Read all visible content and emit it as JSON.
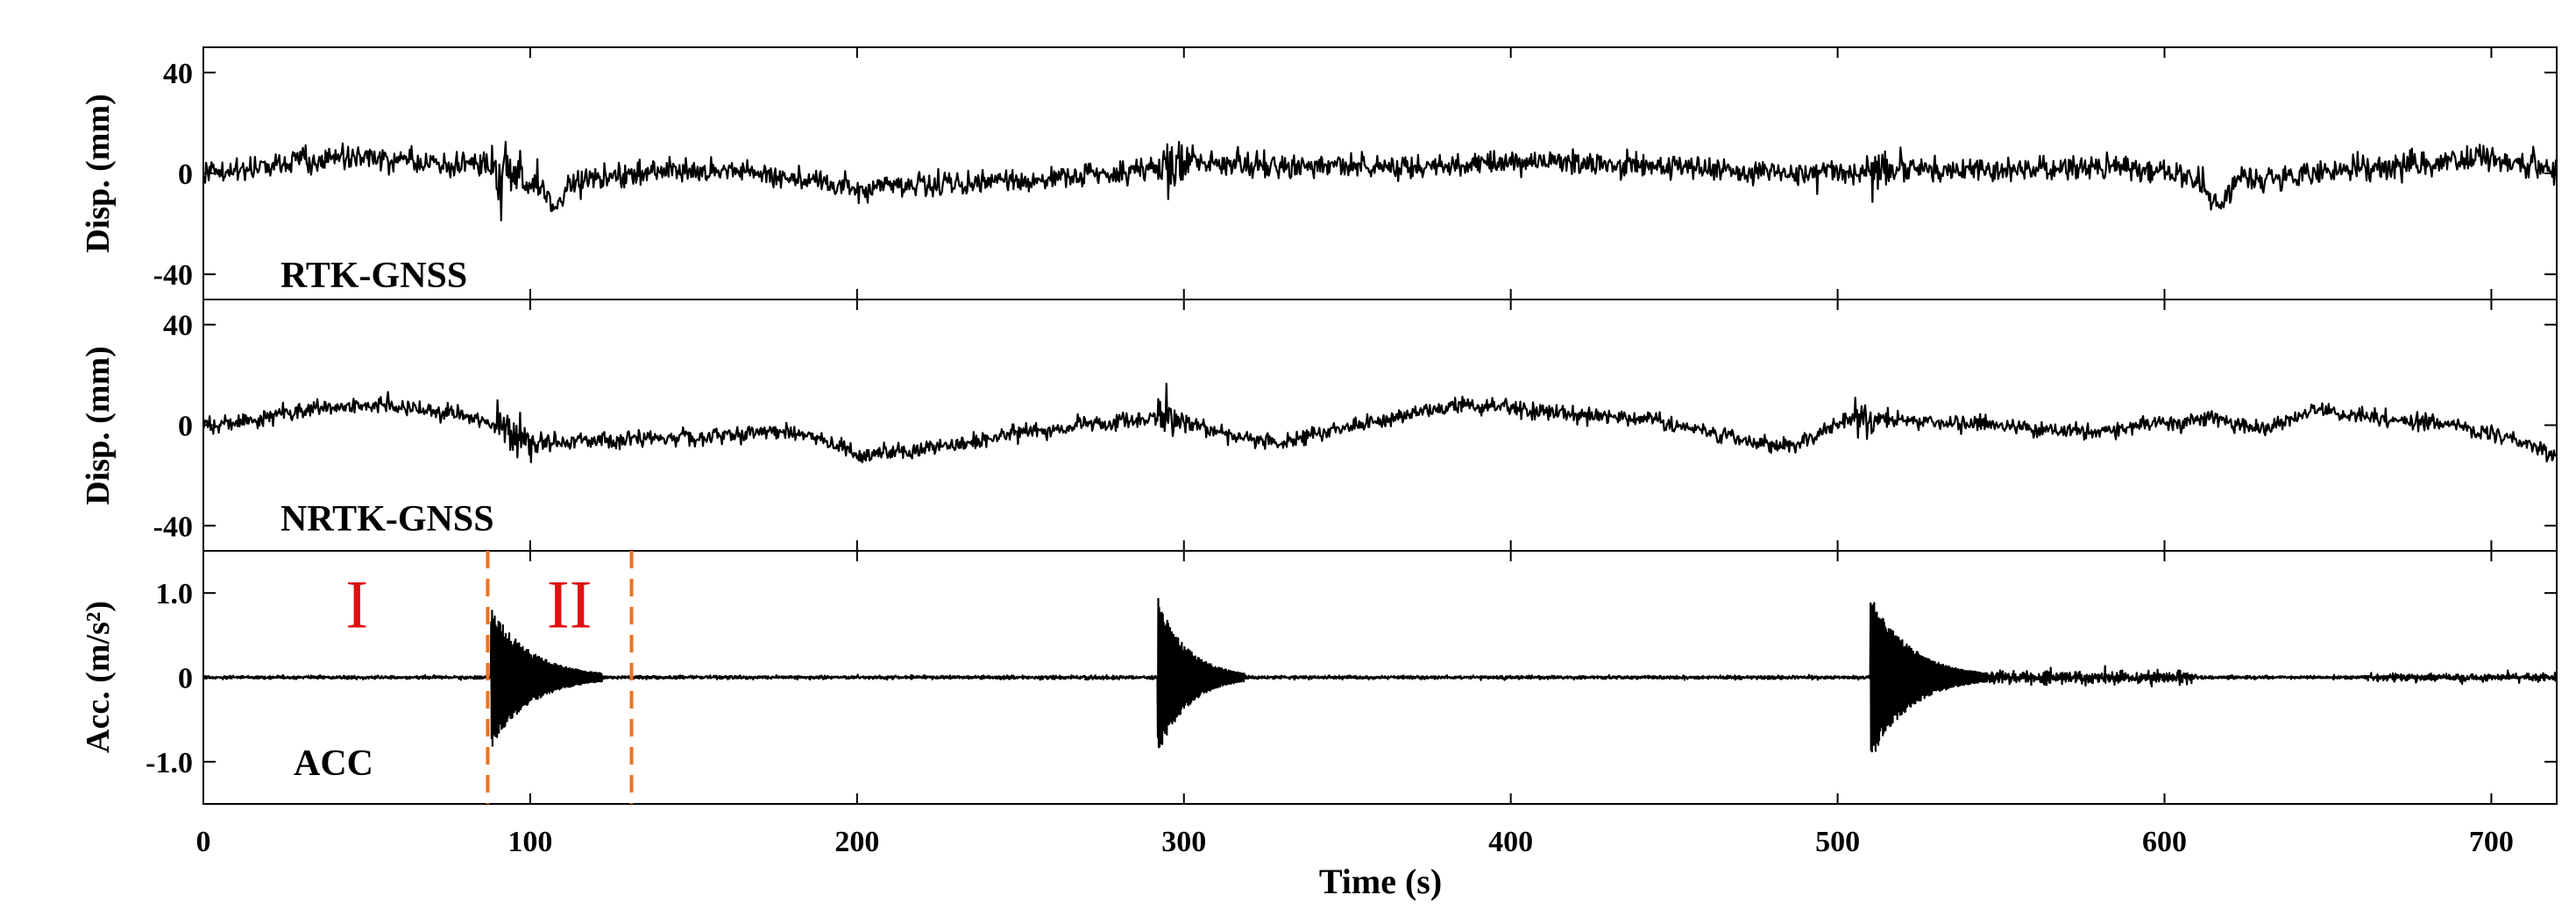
{
  "chart_data": {
    "type": "line",
    "xlabel": "Time (s)",
    "xlim": [
      0,
      720
    ],
    "x_ticks": [
      0,
      100,
      200,
      300,
      400,
      500,
      600,
      700
    ],
    "shared_x_axis": true,
    "panels": [
      {
        "id": "rtk",
        "label": "RTK-GNSS",
        "ylabel": "Disp. (mm)",
        "ylim": [
          -50,
          50
        ],
        "y_ticks": [
          {
            "value": 40,
            "label": "40"
          },
          {
            "value": 0,
            "label": "0"
          },
          {
            "value": -40,
            "label": "-40"
          }
        ],
        "series": [
          {
            "type": "noisy_trace",
            "color": "#000000",
            "noise_amplitude": 4,
            "baseline": [
              [
                0,
                0
              ],
              [
                20,
                3
              ],
              [
                45,
                7
              ],
              [
                70,
                5
              ],
              [
                90,
                2
              ],
              [
                100,
                -3
              ],
              [
                104,
                -8
              ],
              [
                108,
                -15
              ],
              [
                112,
                -4
              ],
              [
                130,
                0
              ],
              [
                160,
                1
              ],
              [
                185,
                -3
              ],
              [
                200,
                -6
              ],
              [
                230,
                -4
              ],
              [
                260,
                -2
              ],
              [
                285,
                1
              ],
              [
                300,
                6
              ],
              [
                320,
                3
              ],
              [
                345,
                4
              ],
              [
                370,
                2
              ],
              [
                400,
                5
              ],
              [
                430,
                4
              ],
              [
                460,
                1
              ],
              [
                500,
                0
              ],
              [
                520,
                2
              ],
              [
                560,
                1
              ],
              [
                590,
                3
              ],
              [
                605,
                0
              ],
              [
                612,
                -4
              ],
              [
                618,
                -14
              ],
              [
                622,
                -3
              ],
              [
                640,
                0
              ],
              [
                670,
                3
              ],
              [
                700,
                6
              ],
              [
                720,
                1
              ]
            ],
            "bursts": [
              {
                "t": 88,
                "duration": 18,
                "amp": 9
              },
              {
                "t": 292,
                "duration": 12,
                "amp": 7
              },
              {
                "t": 510,
                "duration": 12,
                "amp": 6
              }
            ]
          }
        ]
      },
      {
        "id": "nrtk",
        "label": "NRTK-GNSS",
        "ylabel": "Disp. (mm)",
        "ylim": [
          -50,
          50
        ],
        "y_ticks": [
          {
            "value": 40,
            "label": "40"
          },
          {
            "value": 0,
            "label": "0"
          },
          {
            "value": -40,
            "label": "-40"
          }
        ],
        "series": [
          {
            "type": "noisy_trace",
            "color": "#000000",
            "noise_amplitude": 2.6,
            "baseline": [
              [
                0,
                0
              ],
              [
                25,
                4
              ],
              [
                50,
                9
              ],
              [
                75,
                5
              ],
              [
                90,
                0
              ],
              [
                100,
                -7
              ],
              [
                120,
                -6
              ],
              [
                150,
                -5
              ],
              [
                175,
                -2
              ],
              [
                190,
                -5
              ],
              [
                200,
                -12
              ],
              [
                220,
                -10
              ],
              [
                245,
                -4
              ],
              [
                265,
                0
              ],
              [
                285,
                2
              ],
              [
                295,
                4
              ],
              [
                310,
                -3
              ],
              [
                330,
                -7
              ],
              [
                360,
                2
              ],
              [
                385,
                9
              ],
              [
                410,
                6
              ],
              [
                440,
                3
              ],
              [
                465,
                -4
              ],
              [
                485,
                -9
              ],
              [
                505,
                3
              ],
              [
                520,
                2
              ],
              [
                550,
                0
              ],
              [
                575,
                -3
              ],
              [
                595,
                0
              ],
              [
                615,
                3
              ],
              [
                630,
                -2
              ],
              [
                645,
                6
              ],
              [
                665,
                3
              ],
              [
                690,
                0
              ],
              [
                710,
                -7
              ],
              [
                720,
                -13
              ]
            ],
            "bursts": [
              {
                "t": 90,
                "duration": 14,
                "amp": 6
              },
              {
                "t": 292,
                "duration": 12,
                "amp": 7
              },
              {
                "t": 505,
                "duration": 14,
                "amp": 6
              }
            ]
          }
        ]
      },
      {
        "id": "acc",
        "label": "ACC",
        "ylabel": "Acc. (m/s²)",
        "ylim": [
          -1.5,
          1.5
        ],
        "y_ticks": [
          {
            "value": 1.0,
            "label": "1.0"
          },
          {
            "value": 0,
            "label": "0"
          },
          {
            "value": -1.0,
            "label": "-1.0"
          }
        ],
        "series": [
          {
            "type": "impulse_trace",
            "color": "#000000",
            "noise_amplitude": 0.025,
            "impulses": [
              {
                "t": 88,
                "peak": 0.85,
                "decay": 12
              },
              {
                "t": 292,
                "peak": 0.95,
                "decay": 9
              },
              {
                "t": 510,
                "peak": 1.0,
                "decay": 12
              }
            ],
            "low_activity": [
              {
                "t0": 530,
                "t1": 600,
                "amp": 0.14
              },
              {
                "t0": 540,
                "t1": 560,
                "amp": 0.1
              },
              {
                "t0": 590,
                "t1": 610,
                "amp": 0.12
              },
              {
                "t0": 660,
                "t1": 720,
                "amp": 0.08
              },
              {
                "t0": 180,
                "t1": 290,
                "amp": 0.035
              },
              {
                "t0": 300,
                "t1": 500,
                "amp": 0.03
              }
            ]
          }
        ],
        "annotations": {
          "vlines": [
            {
              "x": 87,
              "color": "#f07020",
              "style": "dashed"
            },
            {
              "x": 131,
              "color": "#f07020",
              "style": "dashed"
            }
          ],
          "region_labels": [
            {
              "text": "I",
              "x": 47,
              "y": 0.88,
              "color": "#e01010"
            },
            {
              "text": "II",
              "x": 112,
              "y": 0.88,
              "color": "#e01010"
            }
          ]
        }
      }
    ],
    "grid": false,
    "legend": "none"
  }
}
